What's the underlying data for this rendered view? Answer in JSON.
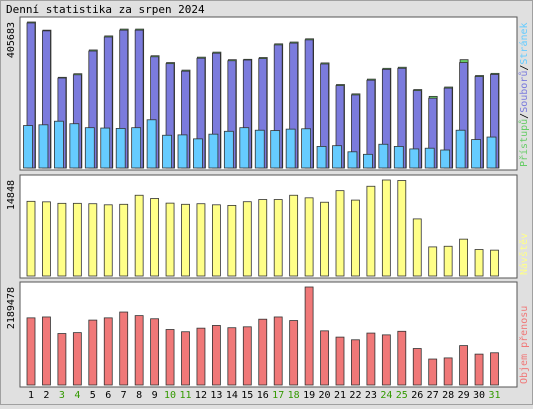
{
  "title": "Denní statistika za srpen 2024",
  "colors": {
    "background": "#e0e0e0",
    "panel": "#ffffff",
    "hits": "#66cc66",
    "files": "#7b7bdd",
    "pages": "#66ccff",
    "visits": "#ffff88",
    "kbytes": "#f07878",
    "weekday_label": "#000000",
    "weekend_label": "#339900"
  },
  "days": [
    "1",
    "2",
    "3",
    "4",
    "5",
    "6",
    "7",
    "8",
    "9",
    "10",
    "11",
    "12",
    "13",
    "14",
    "15",
    "16",
    "17",
    "18",
    "19",
    "20",
    "21",
    "22",
    "23",
    "24",
    "25",
    "26",
    "27",
    "28",
    "29",
    "30",
    "31"
  ],
  "weekend_days": [
    "3",
    "4",
    "10",
    "11",
    "17",
    "18",
    "24",
    "25",
    "31"
  ],
  "chart_data": [
    {
      "type": "bar",
      "name": "top",
      "ymax_label": "405683",
      "legend": [
        {
          "text": "Přístupů",
          "color": "#66cc66"
        },
        {
          "text": "/",
          "color": "#000000"
        },
        {
          "text": "Souborů",
          "color": "#7b7bdd"
        },
        {
          "text": "/",
          "color": "#000000"
        },
        {
          "text": "Stránek",
          "color": "#66ccff"
        }
      ],
      "ylim": [
        0,
        405683
      ],
      "series": [
        {
          "key": "hits",
          "values": [
            405683,
            383000,
            252000,
            262000,
            328000,
            367000,
            386000,
            386000,
            312000,
            293000,
            272000,
            308000,
            322000,
            301000,
            302000,
            307000,
            345000,
            350000,
            359000,
            292000,
            232000,
            206000,
            247000,
            277000,
            280000,
            218000,
            199000,
            225000,
            301000,
            257000,
            263000
          ]
        },
        {
          "key": "files",
          "values": [
            403000,
            381000,
            250000,
            259000,
            325000,
            364000,
            383000,
            383000,
            309000,
            290000,
            269000,
            305000,
            319000,
            298000,
            300000,
            304000,
            342000,
            347000,
            356000,
            289000,
            229000,
            203000,
            244000,
            274000,
            277000,
            215000,
            194000,
            222000,
            293000,
            254000,
            260000
          ]
        },
        {
          "key": "pages",
          "values": [
            118000,
            120000,
            130000,
            123000,
            112000,
            111000,
            110000,
            112000,
            134000,
            91000,
            92000,
            81000,
            94000,
            102000,
            112000,
            105000,
            104000,
            108000,
            109000,
            60000,
            62000,
            45000,
            38000,
            66000,
            60000,
            53000,
            55000,
            50000,
            105000,
            79000,
            86000
          ]
        }
      ]
    },
    {
      "type": "bar",
      "name": "middle",
      "ymax_label": "14848",
      "legend": [
        {
          "text": "Návštěv",
          "color": "#ffff88"
        }
      ],
      "ylim": [
        0,
        14848
      ],
      "series": [
        {
          "key": "visits",
          "values": [
            11550,
            11470,
            11240,
            11240,
            11180,
            11010,
            11090,
            12490,
            11990,
            11270,
            11090,
            11180,
            11010,
            10920,
            11490,
            11830,
            11830,
            12490,
            12090,
            11410,
            13200,
            11740,
            13880,
            14848,
            14770,
            8830,
            4500,
            4600,
            5700,
            4100,
            4000
          ]
        }
      ]
    },
    {
      "type": "bar",
      "name": "bottom",
      "ymax_label": "2189478",
      "legend": [
        {
          "text": "Objem přenosu",
          "color": "#f07878"
        }
      ],
      "ylim": [
        0,
        2189478
      ],
      "series": [
        {
          "key": "kbytes",
          "values": [
            1500000,
            1520000,
            1150000,
            1170000,
            1450000,
            1500000,
            1630000,
            1550000,
            1480000,
            1240000,
            1190000,
            1270000,
            1330000,
            1280000,
            1300000,
            1470000,
            1520000,
            1440000,
            2189478,
            1210000,
            1070000,
            1010000,
            1160000,
            1120000,
            1200000,
            815000,
            580000,
            605000,
            880000,
            690000,
            720000
          ]
        }
      ]
    }
  ]
}
